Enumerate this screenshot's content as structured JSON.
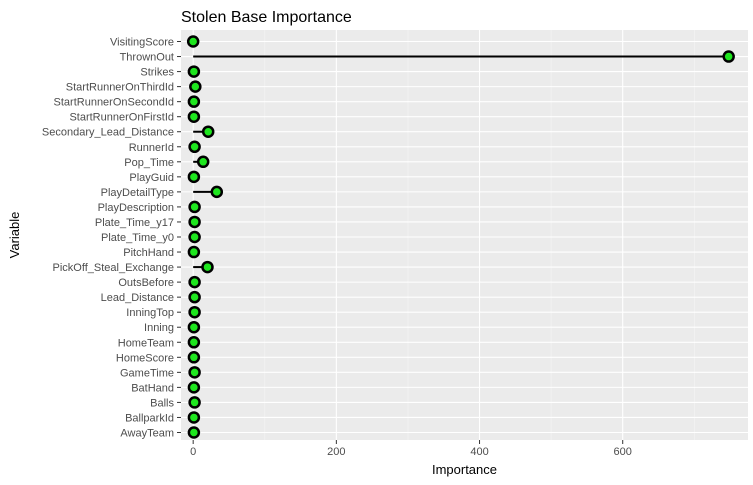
{
  "chart_data": {
    "type": "lollipop",
    "orientation": "horizontal",
    "title": "Stolen Base Importance",
    "xlabel": "Importance",
    "ylabel": "Variable",
    "xlim": [
      -17,
      775
    ],
    "xticks": [
      0,
      200,
      400,
      600
    ],
    "grid": true,
    "point_color": "#1ee61e",
    "panel_background": "#ebebeb",
    "categories": [
      "VisitingScore",
      "ThrownOut",
      "Strikes",
      "StartRunnerOnThirdId",
      "StartRunnerOnSecondId",
      "StartRunnerOnFirstId",
      "Secondary_Lead_Distance",
      "RunnerId",
      "Pop_Time",
      "PlayGuid",
      "PlayDetailType",
      "PlayDescription",
      "Plate_Time_y17",
      "Plate_Time_y0",
      "PitchHand",
      "PickOff_Steal_Exchange",
      "OutsBefore",
      "Lead_Distance",
      "InningTop",
      "Inning",
      "HomeTeam",
      "HomeScore",
      "GameTime",
      "BatHand",
      "Balls",
      "BallparkId",
      "AwayTeam"
    ],
    "values": [
      0,
      748,
      1,
      3,
      1,
      1,
      21,
      2,
      14,
      1,
      33,
      2,
      2,
      2,
      1,
      20,
      2,
      2,
      2,
      1,
      1,
      1,
      2,
      1,
      2,
      1,
      1
    ]
  }
}
